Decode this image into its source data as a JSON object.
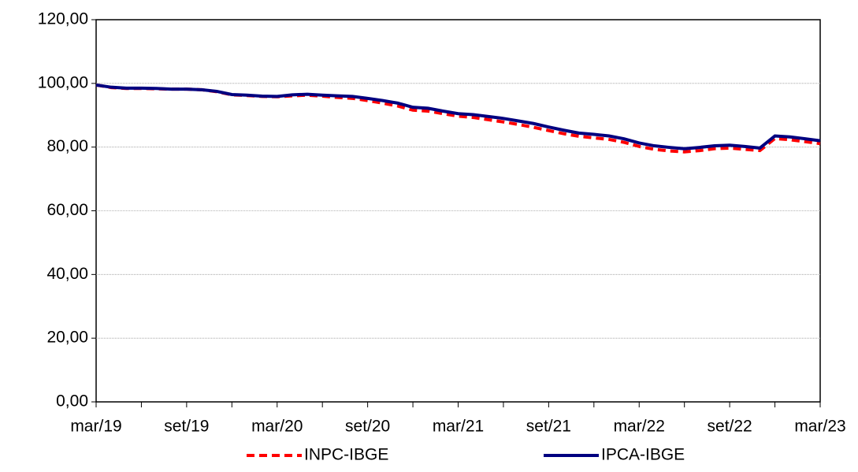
{
  "chart_data": {
    "type": "line",
    "categories": [
      "mar/19",
      null,
      null,
      null,
      null,
      null,
      "set/19",
      null,
      null,
      null,
      null,
      null,
      "mar/20",
      null,
      null,
      null,
      null,
      null,
      "set/20",
      null,
      null,
      null,
      null,
      null,
      "mar/21",
      null,
      null,
      null,
      null,
      null,
      "set/21",
      null,
      null,
      null,
      null,
      null,
      "mar/22",
      null,
      null,
      null,
      null,
      null,
      "set/22",
      null,
      null,
      null,
      null,
      null,
      "mar/23"
    ],
    "series": [
      {
        "name": "INPC-IBGE",
        "color": "#ff0000",
        "dash": true,
        "values": [
          99.5,
          98.7,
          98.4,
          98.4,
          98.3,
          98.2,
          98.2,
          98.0,
          97.4,
          96.4,
          96.2,
          95.9,
          95.8,
          96.1,
          96.3,
          96.0,
          95.6,
          95.3,
          94.6,
          93.8,
          92.9,
          91.6,
          91.3,
          90.5,
          89.7,
          89.3,
          88.6,
          87.9,
          87.1,
          86.2,
          85.2,
          84.2,
          83.4,
          82.9,
          82.4,
          81.5,
          80.2,
          79.3,
          78.8,
          78.5,
          78.9,
          79.5,
          79.7,
          79.3,
          78.9,
          82.7,
          82.3,
          81.7,
          81.1
        ]
      },
      {
        "name": "IPCA-IBGE",
        "color": "#000080",
        "dash": false,
        "values": [
          99.5,
          98.8,
          98.5,
          98.5,
          98.4,
          98.2,
          98.2,
          98.0,
          97.5,
          96.5,
          96.3,
          96.0,
          95.9,
          96.4,
          96.6,
          96.3,
          96.1,
          95.9,
          95.3,
          94.6,
          93.8,
          92.5,
          92.2,
          91.3,
          90.5,
          90.2,
          89.6,
          89.0,
          88.2,
          87.4,
          86.3,
          85.3,
          84.4,
          84.0,
          83.5,
          82.6,
          81.3,
          80.4,
          79.9,
          79.5,
          79.9,
          80.4,
          80.6,
          80.2,
          79.7,
          83.5,
          83.2,
          82.6,
          82.0
        ]
      }
    ],
    "ylim": [
      0,
      120
    ],
    "yticks": [
      {
        "value": 0,
        "label": "0,00"
      },
      {
        "value": 20,
        "label": "20,00"
      },
      {
        "value": 40,
        "label": "40,00"
      },
      {
        "value": 60,
        "label": "60,00"
      },
      {
        "value": 80,
        "label": "80,00"
      },
      {
        "value": 100,
        "label": "100,00"
      },
      {
        "value": 120,
        "label": "120,00"
      }
    ],
    "grid": true,
    "legend": "bottom"
  }
}
